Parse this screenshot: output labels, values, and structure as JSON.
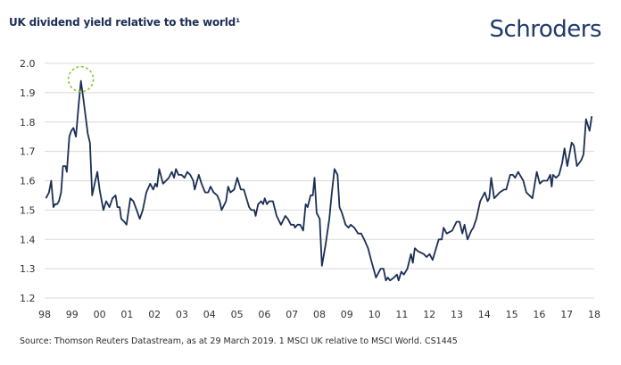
{
  "header": {
    "title": "UK dividend yield relative to the world¹",
    "logo_text": "Schroders"
  },
  "footer": {
    "source": "Source: Thomson Reuters Datastream, as at 29 March 2019. 1  MSCI UK relative to MSCI World. CS1445"
  },
  "colors": {
    "line": "#1b2f55",
    "grid": "#d9d9d9",
    "highlight": "#8dc63f",
    "logo": "#1f3a6b"
  },
  "chart_data": {
    "type": "line",
    "title": "UK dividend yield relative to the world¹",
    "xlabel": "",
    "ylabel": "",
    "xlim": [
      1998,
      2018
    ],
    "ylim": [
      1.2,
      2.0
    ],
    "grid": "horizontal",
    "x_tick_labels": [
      "98",
      "99",
      "00",
      "01",
      "02",
      "03",
      "04",
      "05",
      "06",
      "07",
      "08",
      "09",
      "10",
      "11",
      "12",
      "13",
      "14",
      "15",
      "16",
      "17",
      "18"
    ],
    "y_tick_labels": [
      "1.2",
      "1.3",
      "1.4",
      "1.5",
      "1.6",
      "1.7",
      "1.8",
      "1.9",
      "2.0"
    ],
    "annotation": {
      "type": "dashed-circle",
      "x": 1999.32,
      "y": 1.94
    },
    "series": [
      {
        "x": [
          1998.05,
          1998.16,
          1998.24,
          1998.32,
          1998.38,
          1998.45,
          1998.52,
          1998.6,
          1998.67,
          1998.76,
          1998.81,
          1998.9,
          1998.97,
          1999.05,
          1999.14,
          1999.24,
          1999.32,
          1999.41,
          1999.49,
          1999.57,
          1999.65,
          1999.73,
          1999.82,
          1999.92,
          2000.0,
          2000.14,
          2000.24,
          2000.36,
          2000.47,
          2000.58,
          2000.65,
          2000.73,
          2000.79,
          2000.9,
          2000.98,
          2001.12,
          2001.23,
          2001.35,
          2001.46,
          2001.57,
          2001.7,
          2001.84,
          2001.95,
          2002.03,
          2002.09,
          2002.17,
          2002.31,
          2002.42,
          2002.52,
          2002.63,
          2002.71,
          2002.78,
          2002.87,
          2002.98,
          2003.09,
          2003.19,
          2003.3,
          2003.41,
          2003.46,
          2003.61,
          2003.71,
          2003.84,
          2003.95,
          2004.04,
          2004.15,
          2004.28,
          2004.37,
          2004.44,
          2004.6,
          2004.68,
          2004.76,
          2004.9,
          2005.01,
          2005.14,
          2005.25,
          2005.44,
          2005.52,
          2005.63,
          2005.68,
          2005.77,
          2005.88,
          2005.95,
          2006.01,
          2006.09,
          2006.17,
          2006.31,
          2006.44,
          2006.6,
          2006.76,
          2006.85,
          2006.96,
          2007.07,
          2007.11,
          2007.2,
          2007.3,
          2007.41,
          2007.5,
          2007.57,
          2007.68,
          2007.76,
          2007.82,
          2007.9,
          2008.01,
          2008.09,
          2008.22,
          2008.36,
          2008.44,
          2008.55,
          2008.66,
          2008.73,
          2008.82,
          2008.95,
          2009.06,
          2009.14,
          2009.27,
          2009.41,
          2009.52,
          2009.63,
          2009.77,
          2009.88,
          2010.06,
          2010.23,
          2010.33,
          2010.42,
          2010.49,
          2010.57,
          2010.71,
          2010.82,
          2010.88,
          2010.98,
          2011.07,
          2011.2,
          2011.33,
          2011.4,
          2011.47,
          2011.58,
          2011.8,
          2011.9,
          2012.01,
          2012.12,
          2012.34,
          2012.45,
          2012.52,
          2012.63,
          2012.83,
          2012.99,
          2013.1,
          2013.2,
          2013.28,
          2013.39,
          2013.53,
          2013.6,
          2013.71,
          2013.85,
          2014.02,
          2014.12,
          2014.18,
          2014.25,
          2014.36,
          2014.56,
          2014.72,
          2014.8,
          2014.94,
          2015.04,
          2015.12,
          2015.23,
          2015.42,
          2015.53,
          2015.75,
          2015.91,
          2016.02,
          2016.13,
          2016.29,
          2016.4,
          2016.45,
          2016.5,
          2016.61,
          2016.72,
          2016.83,
          2016.92,
          2017.02,
          2017.18,
          2017.26,
          2017.37,
          2017.53,
          2017.61,
          2017.7,
          2017.83,
          2017.91
        ],
        "y": [
          1.54,
          1.56,
          1.6,
          1.51,
          1.52,
          1.52,
          1.53,
          1.56,
          1.65,
          1.65,
          1.63,
          1.75,
          1.77,
          1.78,
          1.75,
          1.86,
          1.94,
          1.88,
          1.82,
          1.76,
          1.73,
          1.55,
          1.59,
          1.63,
          1.57,
          1.5,
          1.53,
          1.51,
          1.54,
          1.55,
          1.51,
          1.51,
          1.47,
          1.46,
          1.45,
          1.54,
          1.53,
          1.5,
          1.47,
          1.5,
          1.56,
          1.59,
          1.57,
          1.59,
          1.58,
          1.64,
          1.59,
          1.6,
          1.61,
          1.63,
          1.61,
          1.64,
          1.62,
          1.62,
          1.61,
          1.63,
          1.62,
          1.6,
          1.57,
          1.62,
          1.59,
          1.56,
          1.56,
          1.58,
          1.56,
          1.55,
          1.53,
          1.5,
          1.53,
          1.58,
          1.56,
          1.57,
          1.61,
          1.57,
          1.57,
          1.51,
          1.5,
          1.5,
          1.48,
          1.52,
          1.53,
          1.52,
          1.54,
          1.52,
          1.53,
          1.53,
          1.48,
          1.45,
          1.48,
          1.47,
          1.45,
          1.45,
          1.44,
          1.45,
          1.45,
          1.43,
          1.52,
          1.51,
          1.55,
          1.55,
          1.61,
          1.49,
          1.47,
          1.31,
          1.38,
          1.47,
          1.55,
          1.64,
          1.62,
          1.51,
          1.49,
          1.45,
          1.44,
          1.45,
          1.44,
          1.42,
          1.42,
          1.4,
          1.37,
          1.33,
          1.27,
          1.3,
          1.3,
          1.26,
          1.27,
          1.26,
          1.27,
          1.28,
          1.26,
          1.29,
          1.28,
          1.3,
          1.35,
          1.32,
          1.37,
          1.36,
          1.35,
          1.34,
          1.35,
          1.33,
          1.4,
          1.4,
          1.44,
          1.42,
          1.43,
          1.46,
          1.46,
          1.42,
          1.45,
          1.4,
          1.43,
          1.44,
          1.47,
          1.53,
          1.56,
          1.53,
          1.54,
          1.61,
          1.54,
          1.56,
          1.57,
          1.57,
          1.62,
          1.62,
          1.61,
          1.63,
          1.6,
          1.56,
          1.54,
          1.63,
          1.59,
          1.6,
          1.6,
          1.62,
          1.58,
          1.62,
          1.61,
          1.62,
          1.66,
          1.71,
          1.65,
          1.73,
          1.72,
          1.65,
          1.67,
          1.69,
          1.81,
          1.77,
          1.82
        ]
      }
    ]
  }
}
